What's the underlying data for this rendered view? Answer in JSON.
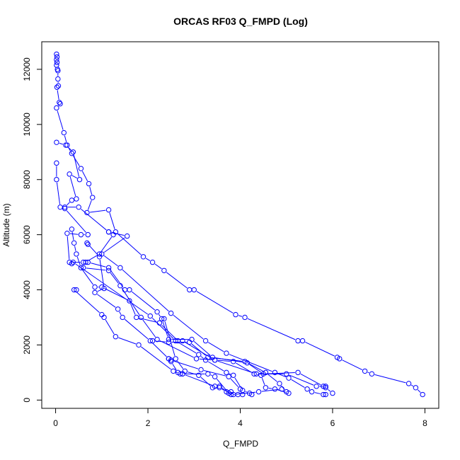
{
  "chart_data": {
    "type": "line",
    "title": "ORCAS RF03 Q_FMPD (Log)",
    "xlabel": "Q_FMPD",
    "ylabel": "Altitude (m)",
    "xlim": [
      -0.3,
      8.3
    ],
    "ylim": [
      -300,
      13000
    ],
    "xticks": [
      0,
      2,
      4,
      6,
      8
    ],
    "yticks": [
      0,
      2000,
      4000,
      6000,
      8000,
      10000,
      12000
    ],
    "grid": false,
    "legend": "none",
    "line_color": "#0000ff",
    "marker": "open-circle",
    "series": [
      {
        "points": [
          [
            0.02,
            12550
          ],
          [
            0.03,
            12450
          ],
          [
            0.02,
            12350
          ],
          [
            0.03,
            12250
          ],
          [
            0.02,
            12150
          ],
          [
            0.04,
            12000
          ],
          [
            0.05,
            11950
          ],
          [
            0.05,
            11650
          ],
          [
            0.06,
            11400
          ],
          [
            0.03,
            11350
          ],
          [
            0.08,
            10800
          ],
          [
            0.1,
            10750
          ],
          [
            0.02,
            10600
          ],
          [
            0.18,
            9700
          ],
          [
            0.25,
            9250
          ],
          [
            0.35,
            8950
          ],
          [
            0.55,
            8400
          ],
          [
            0.72,
            7850
          ],
          [
            0.8,
            7350
          ],
          [
            0.68,
            6800
          ],
          [
            1.15,
            6900
          ],
          [
            1.3,
            6100
          ],
          [
            1.9,
            5200
          ],
          [
            2.1,
            5000
          ],
          [
            2.35,
            4700
          ],
          [
            2.9,
            4000
          ],
          [
            3.0,
            4000
          ],
          [
            3.9,
            3100
          ],
          [
            4.1,
            3000
          ],
          [
            5.25,
            2150
          ],
          [
            5.35,
            2150
          ],
          [
            6.1,
            1550
          ],
          [
            6.15,
            1500
          ],
          [
            6.7,
            1050
          ],
          [
            6.85,
            950
          ],
          [
            7.65,
            600
          ],
          [
            7.8,
            450
          ],
          [
            7.95,
            200
          ]
        ]
      },
      {
        "points": [
          [
            0.02,
            9350
          ],
          [
            0.22,
            9250
          ],
          [
            0.38,
            9000
          ],
          [
            0.52,
            8000
          ],
          [
            0.3,
            8200
          ],
          [
            0.45,
            7300
          ],
          [
            0.35,
            7250
          ],
          [
            0.2,
            7000
          ],
          [
            0.5,
            7000
          ],
          [
            1.15,
            6100
          ],
          [
            1.25,
            6000
          ],
          [
            0.95,
            5300
          ],
          [
            0.65,
            5000
          ],
          [
            0.6,
            4800
          ],
          [
            1.15,
            4700
          ],
          [
            1.4,
            4150
          ],
          [
            1.85,
            3000
          ],
          [
            2.2,
            2200
          ],
          [
            3.05,
            1500
          ],
          [
            3.45,
            1450
          ],
          [
            4.35,
            950
          ],
          [
            5.0,
            950
          ],
          [
            5.65,
            500
          ],
          [
            5.85,
            500
          ]
        ]
      },
      {
        "points": [
          [
            0.02,
            8600
          ],
          [
            0.02,
            8000
          ],
          [
            0.1,
            7000
          ],
          [
            0.2,
            6950
          ],
          [
            0.7,
            6000
          ],
          [
            0.55,
            6000
          ],
          [
            0.25,
            6050
          ],
          [
            0.3,
            5000
          ],
          [
            0.6,
            5000
          ],
          [
            0.7,
            5000
          ],
          [
            1.15,
            4800
          ],
          [
            1.5,
            4000
          ],
          [
            1.6,
            4000
          ],
          [
            2.2,
            3200
          ],
          [
            2.3,
            2950
          ],
          [
            2.45,
            2200
          ],
          [
            2.95,
            2200
          ],
          [
            3.4,
            1550
          ],
          [
            4.15,
            1350
          ],
          [
            4.5,
            950
          ],
          [
            5.25,
            1000
          ],
          [
            5.8,
            500
          ],
          [
            5.85,
            450
          ],
          [
            6.0,
            250
          ]
        ]
      },
      {
        "points": [
          [
            0.35,
            6200
          ],
          [
            0.4,
            5700
          ],
          [
            0.45,
            5300
          ],
          [
            0.55,
            4800
          ],
          [
            0.85,
            4100
          ],
          [
            1.0,
            4100
          ],
          [
            1.6,
            3600
          ],
          [
            1.75,
            3000
          ],
          [
            2.25,
            2800
          ],
          [
            2.65,
            2150
          ],
          [
            2.75,
            2150
          ],
          [
            3.45,
            1450
          ],
          [
            3.85,
            1400
          ],
          [
            4.3,
            950
          ],
          [
            4.45,
            900
          ],
          [
            4.55,
            450
          ],
          [
            4.75,
            400
          ],
          [
            5.05,
            250
          ]
        ]
      },
      {
        "points": [
          [
            0.7,
            5650
          ],
          [
            0.68,
            5700
          ],
          [
            0.95,
            5200
          ],
          [
            1.05,
            4050
          ],
          [
            0.85,
            3900
          ],
          [
            1.35,
            3300
          ],
          [
            1.45,
            3000
          ],
          [
            2.05,
            2150
          ],
          [
            2.45,
            1500
          ],
          [
            2.5,
            1450
          ],
          [
            3.15,
            1100
          ],
          [
            3.75,
            850
          ],
          [
            4.0,
            400
          ],
          [
            4.05,
            200
          ]
        ]
      },
      {
        "points": [
          [
            0.45,
            4000
          ],
          [
            0.4,
            4000
          ],
          [
            1.0,
            3100
          ],
          [
            1.05,
            3000
          ],
          [
            1.3,
            2300
          ],
          [
            1.8,
            2000
          ],
          [
            2.55,
            1050
          ],
          [
            2.7,
            950
          ],
          [
            2.75,
            950
          ],
          [
            3.45,
            500
          ],
          [
            3.55,
            500
          ],
          [
            3.8,
            200
          ],
          [
            3.95,
            200
          ]
        ]
      },
      {
        "points": [
          [
            0.35,
            4950
          ],
          [
            0.38,
            5000
          ],
          [
            2.05,
            3050
          ],
          [
            2.6,
            2150
          ],
          [
            3.1,
            1650
          ],
          [
            3.25,
            1450
          ],
          [
            3.7,
            1000
          ],
          [
            3.85,
            900
          ],
          [
            4.05,
            350
          ],
          [
            4.2,
            250
          ],
          [
            4.25,
            200
          ]
        ]
      },
      {
        "points": [
          [
            2.35,
            2950
          ],
          [
            2.6,
            1500
          ],
          [
            2.8,
            1050
          ],
          [
            3.1,
            900
          ],
          [
            3.4,
            450
          ],
          [
            3.55,
            450
          ],
          [
            3.7,
            300
          ],
          [
            3.8,
            300
          ]
        ]
      },
      {
        "points": [
          [
            1.15,
            6100
          ],
          [
            1.55,
            5950
          ],
          [
            1.0,
            5300
          ],
          [
            1.4,
            4800
          ],
          [
            2.5,
            3150
          ],
          [
            3.25,
            2150
          ],
          [
            3.7,
            1700
          ],
          [
            4.75,
            1000
          ],
          [
            5.05,
            800
          ],
          [
            5.45,
            400
          ],
          [
            5.55,
            300
          ],
          [
            5.8,
            200
          ],
          [
            5.85,
            200
          ]
        ]
      },
      {
        "points": [
          [
            2.45,
            1500
          ],
          [
            2.5,
            1400
          ],
          [
            2.65,
            1000
          ],
          [
            2.75,
            950
          ],
          [
            3.3,
            950
          ],
          [
            3.45,
            850
          ],
          [
            3.75,
            250
          ],
          [
            3.85,
            200
          ],
          [
            4.4,
            300
          ],
          [
            4.9,
            400
          ]
        ]
      },
      {
        "points": [
          [
            2.1,
            2150
          ],
          [
            2.45,
            2100
          ],
          [
            2.9,
            2100
          ],
          [
            3.3,
            1550
          ],
          [
            4.1,
            1400
          ],
          [
            4.55,
            1000
          ],
          [
            4.85,
            600
          ],
          [
            5.0,
            300
          ]
        ]
      }
    ]
  }
}
